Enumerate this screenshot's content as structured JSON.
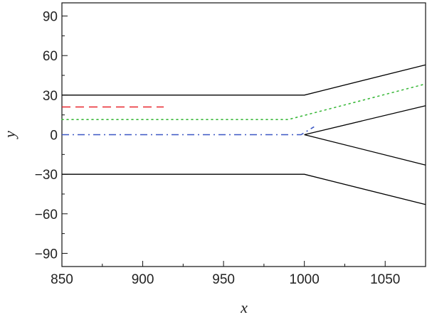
{
  "chart_data": {
    "type": "line",
    "xlabel": "x",
    "ylabel": "y",
    "xlim": [
      850,
      1075
    ],
    "ylim": [
      -100,
      100
    ],
    "x_ticks": [
      "850",
      "900",
      "950",
      "1000",
      "1050"
    ],
    "y_ticks": [
      "90",
      "60",
      "30",
      "0",
      "−30",
      "−60",
      "−90"
    ],
    "x_tick_values": [
      850,
      900,
      950,
      1000,
      1050
    ],
    "y_tick_values": [
      90,
      60,
      30,
      0,
      -30,
      -60,
      -90
    ],
    "grid": false,
    "legend": "none",
    "series": [
      {
        "style": "solid",
        "color": "#000000",
        "x": [
          850,
          1000,
          1075
        ],
        "y": [
          30,
          30,
          53
        ]
      },
      {
        "style": "solid",
        "color": "#000000",
        "x": [
          850,
          1000,
          1075
        ],
        "y": [
          -30,
          -30,
          -53
        ]
      },
      {
        "style": "solid",
        "color": "#000000",
        "x": [
          1075,
          1000,
          1075
        ],
        "y": [
          22,
          0,
          -23
        ]
      },
      {
        "style": "dashed",
        "color": "#e8262d",
        "x": [
          850,
          913
        ],
        "y": [
          21,
          21
        ]
      },
      {
        "style": "dotted",
        "color": "#3cb93c",
        "x": [
          850,
          990,
          1075
        ],
        "y": [
          11.5,
          11.5,
          38.5
        ]
      },
      {
        "style": "dashdot",
        "color": "#3b57c4",
        "x": [
          850,
          998,
          1006
        ],
        "y": [
          0,
          0,
          6
        ]
      }
    ]
  }
}
